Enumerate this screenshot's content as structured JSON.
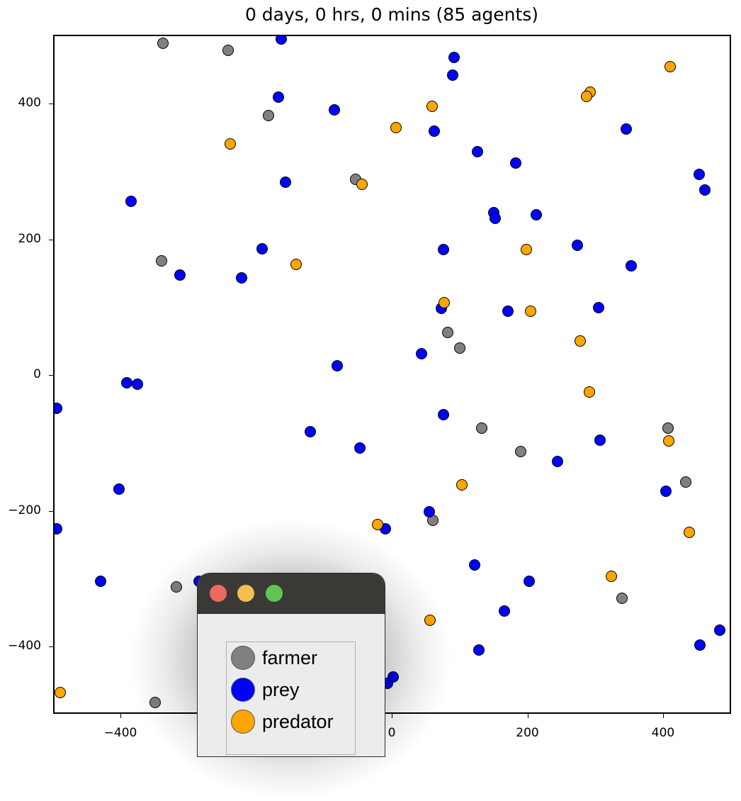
{
  "window": {
    "traffic_lights": {
      "close": "#ec6a5e",
      "minimize": "#f4bf4f",
      "maximize": "#61c554"
    }
  },
  "legend": {
    "items": [
      {
        "label": "farmer",
        "color": "#808080"
      },
      {
        "label": "prey",
        "color": "#0000ff"
      },
      {
        "label": "predator",
        "color": "#ffa500"
      }
    ]
  },
  "chart_data": {
    "type": "scatter",
    "title": "0 days, 0 hrs, 0 mins (85 agents)",
    "xlabel": "",
    "ylabel": "",
    "xlim": [
      -500,
      500
    ],
    "ylim": [
      -500,
      500
    ],
    "xticks": [
      -400,
      -200,
      0,
      200,
      400
    ],
    "yticks": [
      -400,
      -200,
      0,
      200,
      400
    ],
    "xtick_labels": [
      "−400",
      "−200",
      "0",
      "200",
      "400"
    ],
    "ytick_labels": [
      "400",
      "200",
      "0",
      "−200",
      "−400"
    ],
    "grid": false,
    "legend_position": "lower-left (floating window)",
    "series": [
      {
        "name": "farmer",
        "color": "#808080",
        "points": [
          [
            -339,
            491
          ],
          [
            -243,
            480
          ],
          [
            -184,
            384
          ],
          [
            -55,
            290
          ],
          [
            -341,
            170
          ],
          [
            80,
            65
          ],
          [
            98,
            42
          ],
          [
            131,
            -76
          ],
          [
            188,
            -111
          ],
          [
            405,
            -76
          ],
          [
            431,
            -156
          ],
          [
            59,
            -212
          ],
          [
            337,
            -327
          ],
          [
            -320,
            -310
          ],
          [
            -351,
            -480
          ]
        ]
      },
      {
        "name": "prey",
        "color": "#0000ff",
        "points": [
          [
            -165,
            497
          ],
          [
            -169,
            411
          ],
          [
            -87,
            393
          ],
          [
            -159,
            286
          ],
          [
            -386,
            258
          ],
          [
            -314,
            149
          ],
          [
            -224,
            145
          ],
          [
            -193,
            188
          ],
          [
            90,
            470
          ],
          [
            88,
            444
          ],
          [
            61,
            361
          ],
          [
            124,
            331
          ],
          [
            181,
            314
          ],
          [
            148,
            241
          ],
          [
            150,
            233
          ],
          [
            211,
            238
          ],
          [
            344,
            364
          ],
          [
            451,
            298
          ],
          [
            460,
            275
          ],
          [
            74,
            187
          ],
          [
            272,
            193
          ],
          [
            351,
            163
          ],
          [
            71,
            100
          ],
          [
            169,
            96
          ],
          [
            303,
            101
          ],
          [
            -82,
            16
          ],
          [
            42,
            33
          ],
          [
            -393,
            -9
          ],
          [
            -377,
            -12
          ],
          [
            -496,
            -47
          ],
          [
            74,
            -56
          ],
          [
            -122,
            -81
          ],
          [
            -49,
            -106
          ],
          [
            305,
            -94
          ],
          [
            242,
            -125
          ],
          [
            -404,
            -166
          ],
          [
            402,
            -169
          ],
          [
            -496,
            -225
          ],
          [
            -12,
            -225
          ],
          [
            53,
            -199
          ],
          [
            120,
            -278
          ],
          [
            -431,
            -302
          ],
          [
            -286,
            -302
          ],
          [
            200,
            -302
          ],
          [
            164,
            -346
          ],
          [
            126,
            -403
          ],
          [
            452,
            -396
          ],
          [
            481,
            -374
          ],
          [
            0,
            -443
          ],
          [
            -8,
            -452
          ]
        ]
      },
      {
        "name": "predator",
        "color": "#ffa500",
        "points": [
          [
            408,
            456
          ],
          [
            290,
            419
          ],
          [
            285,
            413
          ],
          [
            57,
            398
          ],
          [
            4,
            367
          ],
          [
            -240,
            343
          ],
          [
            -46,
            283
          ],
          [
            -143,
            165
          ],
          [
            196,
            187
          ],
          [
            75,
            109
          ],
          [
            203,
            96
          ],
          [
            276,
            52
          ],
          [
            289,
            -23
          ],
          [
            406,
            -95
          ],
          [
            101,
            -160
          ],
          [
            -23,
            -218
          ],
          [
            437,
            -230
          ],
          [
            322,
            -294
          ],
          [
            54,
            -359
          ],
          [
            -491,
            -466
          ]
        ]
      }
    ]
  }
}
